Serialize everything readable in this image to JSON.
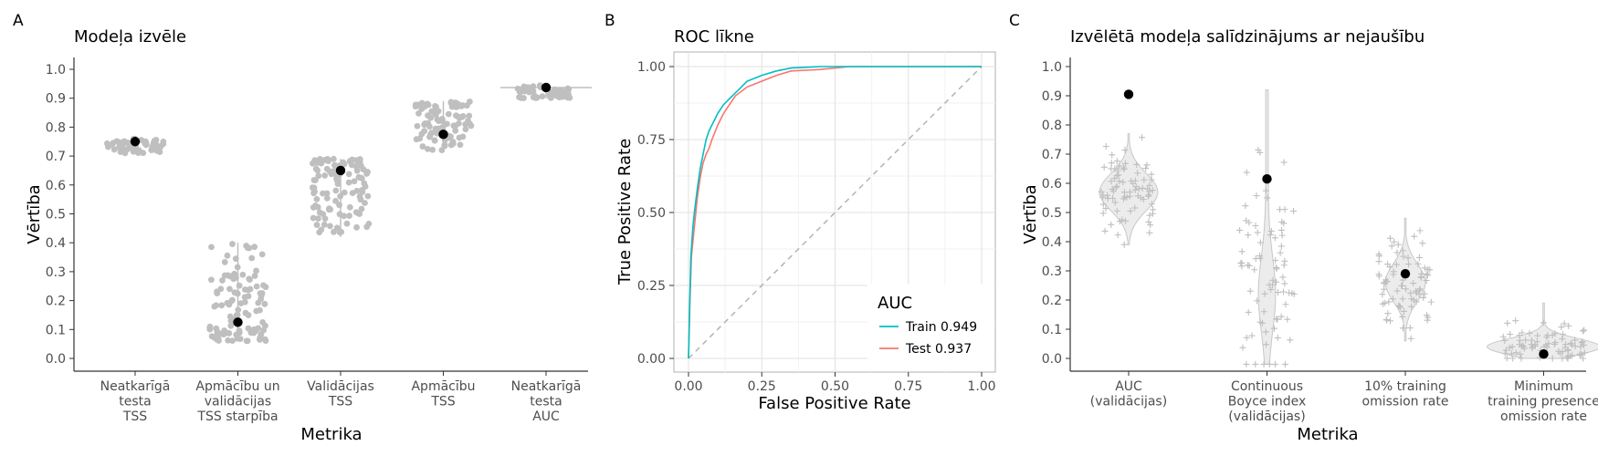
{
  "chart_data": [
    {
      "panel": "A",
      "type": "scatter",
      "title": "Modeļa izvēle",
      "xlabel": "Metrika",
      "ylabel": "Vērtība",
      "ylim": [
        0.0,
        1.0
      ],
      "yticks": [
        "0.0",
        "0.1",
        "0.2",
        "0.3",
        "0.4",
        "0.5",
        "0.6",
        "0.7",
        "0.8",
        "0.9",
        "1.0"
      ],
      "categories": [
        [
          "Neatkarīgā",
          "testa",
          "TSS"
        ],
        [
          "Apmācību un",
          "validācijas",
          "TSS starpība"
        ],
        [
          "Validācijas",
          "TSS"
        ],
        [
          "Apmācību",
          "TSS"
        ],
        [
          "Neatkarīgā",
          "testa",
          "AUC"
        ]
      ],
      "selected_values": [
        0.75,
        0.125,
        0.65,
        0.775,
        0.937
      ],
      "distributions": [
        {
          "min": 0.71,
          "max": 0.76,
          "n": 60
        },
        {
          "min": 0.06,
          "max": 0.4,
          "n": 110
        },
        {
          "min": 0.42,
          "max": 0.69,
          "n": 110
        },
        {
          "min": 0.72,
          "max": 0.89,
          "n": 90
        },
        {
          "min": 0.9,
          "max": 0.945,
          "n": 45
        }
      ],
      "grid": false
    },
    {
      "panel": "B",
      "type": "line",
      "title": "ROC līkne",
      "xlabel": "False Positive Rate",
      "ylabel": "True Positive Rate",
      "xlim": [
        0.0,
        1.0
      ],
      "ylim": [
        0.0,
        1.0
      ],
      "xticks": [
        "0.00",
        "0.25",
        "0.50",
        "0.75",
        "1.00"
      ],
      "yticks": [
        "0.00",
        "0.25",
        "0.50",
        "0.75",
        "1.00"
      ],
      "legend": {
        "title": "AUC",
        "position": "bottom-right"
      },
      "series": [
        {
          "name": "Train 0.949",
          "color": "#00BFC4",
          "points": [
            [
              0,
              0
            ],
            [
              0.003,
              0.15
            ],
            [
              0.008,
              0.35
            ],
            [
              0.015,
              0.45
            ],
            [
              0.02,
              0.5
            ],
            [
              0.03,
              0.58
            ],
            [
              0.04,
              0.65
            ],
            [
              0.05,
              0.7
            ],
            [
              0.06,
              0.75
            ],
            [
              0.07,
              0.78
            ],
            [
              0.08,
              0.8
            ],
            [
              0.09,
              0.82
            ],
            [
              0.1,
              0.84
            ],
            [
              0.12,
              0.87
            ],
            [
              0.14,
              0.89
            ],
            [
              0.16,
              0.91
            ],
            [
              0.18,
              0.93
            ],
            [
              0.2,
              0.95
            ],
            [
              0.25,
              0.97
            ],
            [
              0.3,
              0.985
            ],
            [
              0.35,
              0.995
            ],
            [
              0.45,
              1.0
            ],
            [
              1.0,
              1.0
            ]
          ]
        },
        {
          "name": "Test 0.937",
          "color": "#F8766D",
          "points": [
            [
              0,
              0
            ],
            [
              0.005,
              0.2
            ],
            [
              0.01,
              0.35
            ],
            [
              0.02,
              0.45
            ],
            [
              0.03,
              0.55
            ],
            [
              0.04,
              0.62
            ],
            [
              0.05,
              0.67
            ],
            [
              0.06,
              0.7
            ],
            [
              0.07,
              0.72
            ],
            [
              0.08,
              0.75
            ],
            [
              0.1,
              0.8
            ],
            [
              0.12,
              0.84
            ],
            [
              0.14,
              0.87
            ],
            [
              0.16,
              0.9
            ],
            [
              0.2,
              0.93
            ],
            [
              0.25,
              0.95
            ],
            [
              0.3,
              0.97
            ],
            [
              0.35,
              0.985
            ],
            [
              0.45,
              0.99
            ],
            [
              0.55,
              1.0
            ],
            [
              1.0,
              1.0
            ]
          ]
        }
      ],
      "reference_line": [
        [
          0,
          0
        ],
        [
          1,
          1
        ]
      ],
      "grid": true
    },
    {
      "panel": "C",
      "type": "scatter",
      "title": "Izvēlētā modeļa salīdzinājums ar nejaušību",
      "xlabel": "Metrika",
      "ylabel": "Vērtība",
      "ylim": [
        0.0,
        1.0
      ],
      "yticks": [
        "0.0",
        "0.1",
        "0.2",
        "0.3",
        "0.4",
        "0.5",
        "0.6",
        "0.7",
        "0.8",
        "0.9",
        "1.0"
      ],
      "categories": [
        [
          "AUC",
          "(validācijas)"
        ],
        [
          "Continuous",
          "Boyce index",
          "(validācijas)"
        ],
        [
          "10% training",
          "omission rate"
        ],
        [
          "Minimum",
          "training presence",
          "omission rate"
        ]
      ],
      "selected_values": [
        0.905,
        0.615,
        0.29,
        0.015
      ],
      "distributions": [
        {
          "min": 0.39,
          "max": 0.77,
          "center": 0.57,
          "n": 80
        },
        {
          "min": -0.02,
          "max": 0.92,
          "center": 0.3,
          "n": 80
        },
        {
          "min": 0.06,
          "max": 0.48,
          "center": 0.26,
          "n": 80
        },
        {
          "min": 0.0,
          "max": 0.19,
          "center": 0.04,
          "n": 80
        }
      ],
      "grid": false
    }
  ],
  "colors": {
    "points": "#bfbfbf",
    "selected": "#000000",
    "train": "#00BFC4",
    "test": "#F8766D",
    "reference": "#b3b3b3",
    "violin_fill": "#ececec"
  }
}
